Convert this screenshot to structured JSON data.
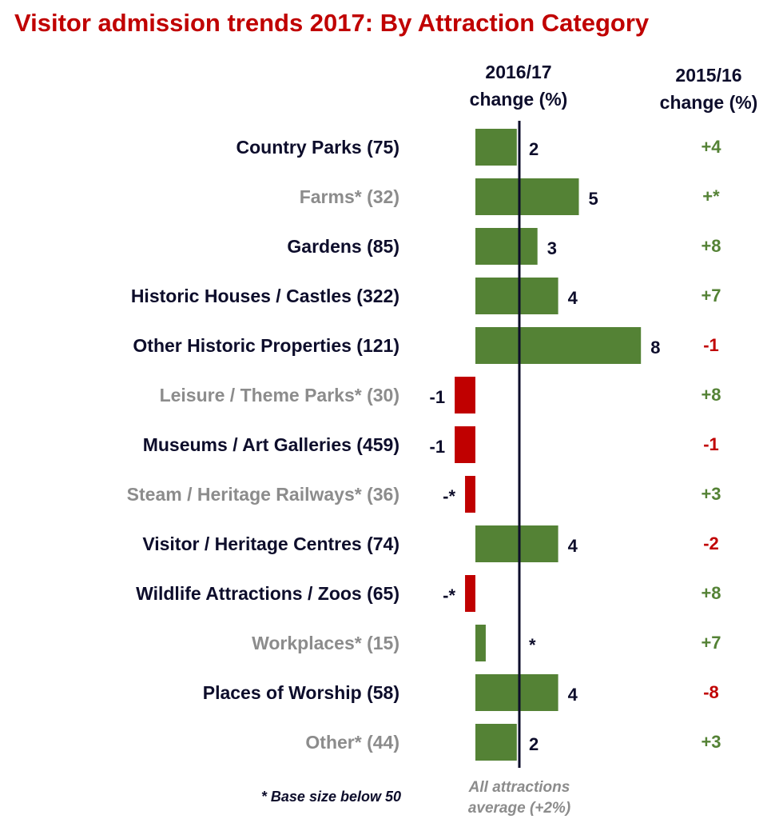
{
  "chart_data": {
    "type": "bar",
    "orientation": "horizontal",
    "title": "Visitor admission trends 2017: By Attraction Category",
    "column_headers": {
      "current": [
        "2016/17",
        "change (%)"
      ],
      "previous": [
        "2015/16",
        "change (%)"
      ]
    },
    "categories": [
      {
        "label": "Country Parks (75)",
        "low_base": false,
        "value": 2,
        "value_label": "2",
        "prev_label": "+4",
        "prev_sign": "pos"
      },
      {
        "label": "Farms* (32)",
        "low_base": true,
        "value": 5,
        "value_label": "5",
        "prev_label": "+*",
        "prev_sign": "pos"
      },
      {
        "label": "Gardens (85)",
        "low_base": false,
        "value": 3,
        "value_label": "3",
        "prev_label": "+8",
        "prev_sign": "pos"
      },
      {
        "label": "Historic Houses / Castles (322)",
        "low_base": false,
        "value": 4,
        "value_label": "4",
        "prev_label": "+7",
        "prev_sign": "pos"
      },
      {
        "label": "Other Historic Properties (121)",
        "low_base": false,
        "value": 8,
        "value_label": "8",
        "prev_label": "-1",
        "prev_sign": "neg"
      },
      {
        "label": "Leisure / Theme Parks* (30)",
        "low_base": true,
        "value": -1,
        "value_label": "-1",
        "prev_label": "+8",
        "prev_sign": "pos"
      },
      {
        "label": "Museums / Art Galleries (459)",
        "low_base": false,
        "value": -1,
        "value_label": "-1",
        "prev_label": "-1",
        "prev_sign": "neg"
      },
      {
        "label": "Steam / Heritage Railways* (36)",
        "low_base": true,
        "value": -0.5,
        "value_label": "-*",
        "prev_label": "+3",
        "prev_sign": "pos"
      },
      {
        "label": "Visitor / Heritage Centres (74)",
        "low_base": false,
        "value": 4,
        "value_label": "4",
        "prev_label": "-2",
        "prev_sign": "neg"
      },
      {
        "label": "Wildlife Attractions / Zoos (65)",
        "low_base": false,
        "value": -0.5,
        "value_label": "-*",
        "prev_label": "+8",
        "prev_sign": "pos"
      },
      {
        "label": "Workplaces* (15)",
        "low_base": true,
        "value": 0.5,
        "value_label": "*",
        "prev_label": "+7",
        "prev_sign": "pos"
      },
      {
        "label": "Places of Worship (58)",
        "low_base": false,
        "value": 4,
        "value_label": "4",
        "prev_label": "-8",
        "prev_sign": "neg"
      },
      {
        "label": "Other* (44)",
        "low_base": true,
        "value": 2,
        "value_label": "2",
        "prev_label": "+3",
        "prev_sign": "pos"
      }
    ],
    "reference_line": {
      "value": 2,
      "label": [
        "All attractions",
        "average (+2%)"
      ]
    },
    "footnote": "* Base size below 50",
    "colors": {
      "title": "#c00000",
      "positive_bar": "#548235",
      "negative_bar": "#c00000",
      "label": "#0d0d2b",
      "low_base_label": "#8c8c8c",
      "positive_text": "#548235",
      "negative_text": "#c00000",
      "reference_line": "#0d0d2b"
    }
  }
}
